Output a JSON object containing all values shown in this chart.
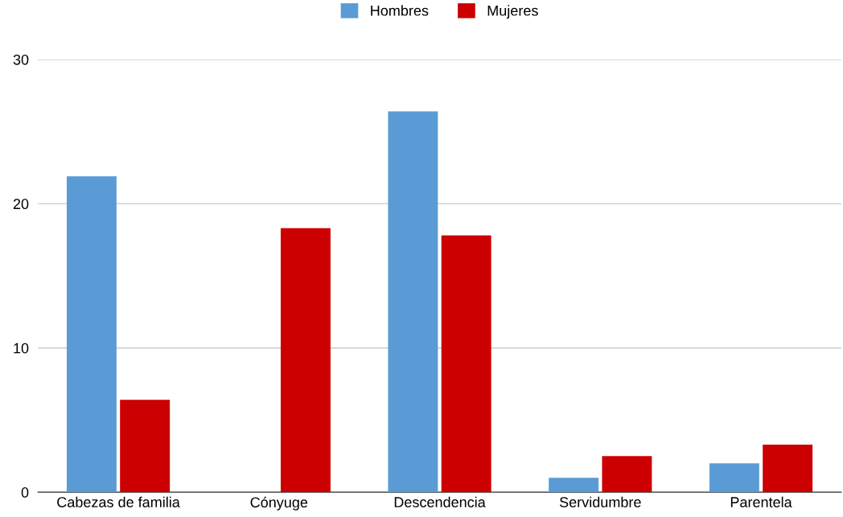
{
  "chart_data": {
    "type": "bar",
    "categories": [
      "Cabezas de familia",
      "Cónyuge",
      "Descendencia",
      "Servidumbre",
      "Parentela"
    ],
    "series": [
      {
        "name": "Hombres",
        "color": "#5b9bd5",
        "values": [
          21.9,
          0,
          26.4,
          1,
          2
        ]
      },
      {
        "name": "Mujeres",
        "color": "#cc0000",
        "values": [
          6.4,
          18.3,
          17.8,
          2.5,
          3.3
        ]
      }
    ],
    "ylim": [
      0,
      30
    ],
    "yticks": [
      0,
      10,
      20,
      30
    ],
    "grid": "y",
    "legend": "top"
  }
}
